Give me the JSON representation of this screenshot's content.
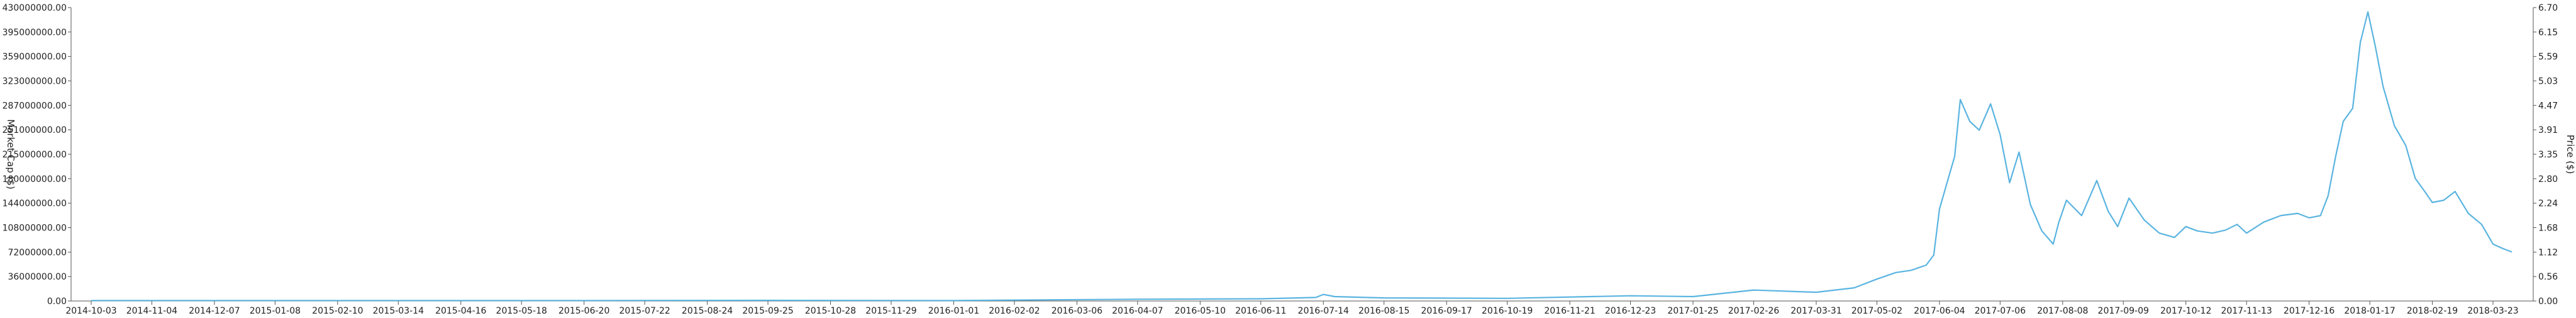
{
  "chart_data": {
    "type": "line",
    "title": "",
    "left_axis": {
      "label": "Market Cap ($)",
      "ylim": [
        0,
        430000000
      ],
      "ticks": [
        "0.00",
        "36000000.00",
        "72000000.00",
        "108000000.00",
        "144000000.00",
        "180000000.00",
        "215000000.00",
        "251000000.00",
        "287000000.00",
        "323000000.00",
        "359000000.00",
        "395000000.00",
        "430000000.00"
      ]
    },
    "right_axis": {
      "label": "Price ($)",
      "ylim": [
        0,
        6.7
      ],
      "ticks": [
        "0.00",
        "0.56",
        "1.12",
        "1.68",
        "2.24",
        "2.80",
        "3.35",
        "3.91",
        "4.47",
        "5.03",
        "5.59",
        "6.15",
        "6.70"
      ]
    },
    "x_axis": {
      "label": "",
      "ticks": [
        "2014-10-03",
        "2014-11-04",
        "2014-12-07",
        "2015-01-08",
        "2015-02-10",
        "2015-03-14",
        "2015-04-16",
        "2015-05-18",
        "2015-06-20",
        "2015-07-22",
        "2015-08-24",
        "2015-09-25",
        "2015-10-28",
        "2015-11-29",
        "2016-01-01",
        "2016-02-02",
        "2016-03-06",
        "2016-04-07",
        "2016-05-10",
        "2016-06-11",
        "2016-07-14",
        "2016-08-15",
        "2016-09-17",
        "2016-10-19",
        "2016-11-21",
        "2016-12-23",
        "2017-01-25",
        "2017-02-26",
        "2017-03-31",
        "2017-05-02",
        "2017-06-04",
        "2017-07-06",
        "2017-08-08",
        "2017-09-09",
        "2017-10-12",
        "2017-11-13",
        "2017-12-16",
        "2018-01-17",
        "2018-02-19",
        "2018-03-23"
      ]
    },
    "grid": false,
    "legend": "none",
    "series": [
      {
        "color": "#5ab4e0",
        "x": [
          "2014-10-03",
          "2014-12-07",
          "2015-03-14",
          "2015-06-20",
          "2015-09-25",
          "2016-01-01",
          "2016-04-07",
          "2016-06-11",
          "2016-07-10",
          "2016-07-14",
          "2016-07-20",
          "2016-08-15",
          "2016-10-19",
          "2016-12-23",
          "2017-01-25",
          "2017-02-26",
          "2017-03-31",
          "2017-04-20",
          "2017-05-02",
          "2017-05-12",
          "2017-05-20",
          "2017-05-28",
          "2017-06-01",
          "2017-06-04",
          "2017-06-08",
          "2017-06-12",
          "2017-06-15",
          "2017-06-20",
          "2017-06-25",
          "2017-07-01",
          "2017-07-06",
          "2017-07-11",
          "2017-07-16",
          "2017-07-22",
          "2017-07-28",
          "2017-08-03",
          "2017-08-06",
          "2017-08-10",
          "2017-08-18",
          "2017-08-26",
          "2017-09-01",
          "2017-09-06",
          "2017-09-12",
          "2017-09-20",
          "2017-09-28",
          "2017-10-06",
          "2017-10-12",
          "2017-10-18",
          "2017-10-26",
          "2017-11-02",
          "2017-11-08",
          "2017-11-13",
          "2017-11-22",
          "2017-12-01",
          "2017-12-10",
          "2017-12-16",
          "2017-12-22",
          "2017-12-26",
          "2017-12-30",
          "2018-01-03",
          "2018-01-08",
          "2018-01-12",
          "2018-01-16",
          "2018-01-20",
          "2018-01-24",
          "2018-01-30",
          "2018-02-05",
          "2018-02-10",
          "2018-02-15",
          "2018-02-19",
          "2018-02-25",
          "2018-03-03",
          "2018-03-10",
          "2018-03-17",
          "2018-03-23",
          "2018-03-28",
          "2018-04-02"
        ],
        "values": [
          0.01,
          0.01,
          0.01,
          0.01,
          0.015,
          0.01,
          0.04,
          0.05,
          0.08,
          0.15,
          0.1,
          0.07,
          0.06,
          0.12,
          0.1,
          0.25,
          0.2,
          0.3,
          0.5,
          0.65,
          0.7,
          0.82,
          1.05,
          2.1,
          2.7,
          3.3,
          4.6,
          4.1,
          3.9,
          4.5,
          3.8,
          2.7,
          3.4,
          2.2,
          1.6,
          1.3,
          1.8,
          2.3,
          1.95,
          2.75,
          2.05,
          1.7,
          2.35,
          1.85,
          1.55,
          1.45,
          1.7,
          1.6,
          1.55,
          1.62,
          1.75,
          1.55,
          1.8,
          1.95,
          2.0,
          1.9,
          1.95,
          2.4,
          3.3,
          4.1,
          4.4,
          5.9,
          6.6,
          5.8,
          4.9,
          4.0,
          3.55,
          2.8,
          2.5,
          2.25,
          2.3,
          2.5,
          2.0,
          1.75,
          1.3,
          1.2,
          1.12
        ]
      }
    ]
  }
}
